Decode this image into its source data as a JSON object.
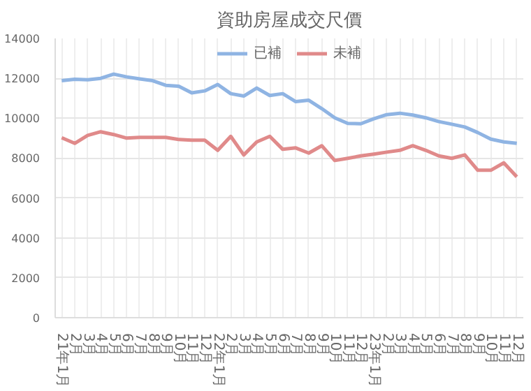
{
  "chart_data": {
    "type": "line",
    "title": "資助房屋成交尺價",
    "categories": [
      "21年1月",
      "2月",
      "3月",
      "4月",
      "5月",
      "6月",
      "7月",
      "8月",
      "9月",
      "10月",
      "11月",
      "12月",
      "22年1月",
      "2月",
      "3月",
      "4月",
      "5月",
      "6月",
      "7月",
      "8月",
      "9月",
      "10月",
      "11月",
      "12月",
      "23年1月",
      "2月",
      "3月",
      "4月",
      "5月",
      "6月",
      "7月",
      "8月",
      "9月",
      "10月",
      "11月",
      "12月"
    ],
    "series": [
      {
        "name": "已補",
        "color": "#8fb4e3",
        "values": [
          11880,
          11950,
          11930,
          12000,
          12210,
          12070,
          11970,
          11880,
          11650,
          11600,
          11270,
          11370,
          11690,
          11230,
          11110,
          11510,
          11140,
          11230,
          10830,
          10900,
          10480,
          10020,
          9740,
          9720,
          9970,
          10180,
          10250,
          10160,
          10020,
          9830,
          9700,
          9560,
          9280,
          8950,
          8810,
          8740
        ]
      },
      {
        "name": "未補",
        "color": "#e08a8a",
        "values": [
          9020,
          8740,
          9140,
          9320,
          9180,
          9000,
          9040,
          9040,
          9040,
          8930,
          8900,
          8900,
          8390,
          9090,
          8160,
          8810,
          9090,
          8440,
          8510,
          8250,
          8620,
          7880,
          7990,
          8110,
          8200,
          8300,
          8390,
          8620,
          8390,
          8110,
          7990,
          8160,
          7390,
          7390,
          7760,
          7060
        ]
      }
    ],
    "ylim": [
      0,
      14000
    ],
    "yticks": [
      0,
      2000,
      4000,
      6000,
      8000,
      10000,
      12000,
      14000
    ],
    "grid": true,
    "legend": "top",
    "marker": "none",
    "line_style": "solid"
  }
}
